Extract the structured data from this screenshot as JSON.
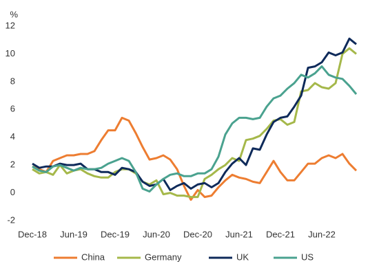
{
  "chart_data": {
    "type": "line",
    "y_label": "%",
    "categories": [
      "Dec-18",
      null,
      null,
      null,
      null,
      null,
      "Jun-19",
      null,
      null,
      null,
      null,
      null,
      "Dec-19",
      null,
      null,
      null,
      null,
      null,
      "Jun-20",
      null,
      null,
      null,
      null,
      null,
      "Dec-20",
      null,
      null,
      null,
      null,
      null,
      "Jun-21",
      null,
      null,
      null,
      null,
      null,
      "Dec-21",
      null,
      null,
      null,
      null,
      null,
      "Jun-22",
      null,
      null,
      null,
      null,
      null
    ],
    "series": [
      {
        "name": "China",
        "color": "#ed7d31",
        "values": [
          1.9,
          1.7,
          1.5,
          2.3,
          2.5,
          2.7,
          2.7,
          2.8,
          2.8,
          3.0,
          3.8,
          4.5,
          4.5,
          5.4,
          5.2,
          4.3,
          3.3,
          2.4,
          2.5,
          2.7,
          2.4,
          1.7,
          0.5,
          -0.5,
          0.2,
          -0.3,
          -0.2,
          0.4,
          0.9,
          1.3,
          1.1,
          1.0,
          0.8,
          0.7,
          1.5,
          2.3,
          1.5,
          0.9,
          0.9,
          1.5,
          2.1,
          2.1,
          2.5,
          2.7,
          2.5,
          2.8,
          2.1,
          1.6
        ]
      },
      {
        "name": "Germany",
        "color": "#a5b84a",
        "values": [
          1.7,
          1.4,
          1.5,
          1.3,
          2.0,
          1.4,
          1.6,
          1.7,
          1.4,
          1.2,
          1.1,
          1.1,
          1.5,
          1.7,
          1.7,
          1.4,
          0.8,
          0.6,
          0.9,
          -0.1,
          0.0,
          -0.2,
          -0.2,
          -0.3,
          -0.3,
          1.0,
          1.3,
          1.7,
          2.0,
          2.5,
          2.3,
          3.8,
          3.9,
          4.1,
          4.6,
          5.2,
          5.3,
          4.9,
          5.1,
          7.3,
          7.4,
          7.9,
          7.6,
          7.5,
          7.9,
          10.0,
          10.4,
          10.0
        ]
      },
      {
        "name": "UK",
        "color": "#0e2a5a",
        "values": [
          2.1,
          1.8,
          1.9,
          1.9,
          2.1,
          2.0,
          2.0,
          2.1,
          1.7,
          1.7,
          1.5,
          1.5,
          1.3,
          1.8,
          1.7,
          1.5,
          0.8,
          0.5,
          0.6,
          1.0,
          0.2,
          0.5,
          0.7,
          0.3,
          0.6,
          0.7,
          0.4,
          0.7,
          1.5,
          2.1,
          2.5,
          2.0,
          3.2,
          3.1,
          4.2,
          5.1,
          5.4,
          5.5,
          6.2,
          7.0,
          9.0,
          9.1,
          9.4,
          10.1,
          9.9,
          10.1,
          11.1,
          10.7
        ]
      },
      {
        "name": "US",
        "color": "#4aa28f",
        "values": [
          1.9,
          1.6,
          1.5,
          1.9,
          2.0,
          1.8,
          1.6,
          1.8,
          1.7,
          1.7,
          1.8,
          2.1,
          2.3,
          2.5,
          2.3,
          1.5,
          0.3,
          0.1,
          0.6,
          1.0,
          1.3,
          1.4,
          1.2,
          1.2,
          1.4,
          1.4,
          1.7,
          2.6,
          4.2,
          5.0,
          5.4,
          5.4,
          5.3,
          5.4,
          6.2,
          6.8,
          7.0,
          7.5,
          7.9,
          8.5,
          8.3,
          8.6,
          9.1,
          8.5,
          8.3,
          8.2,
          7.7,
          7.1
        ]
      }
    ],
    "ylim": [
      -2,
      12
    ],
    "yticks": [
      -2,
      0,
      2,
      4,
      6,
      8,
      10,
      12
    ],
    "grid": false,
    "legend": "bottom"
  }
}
